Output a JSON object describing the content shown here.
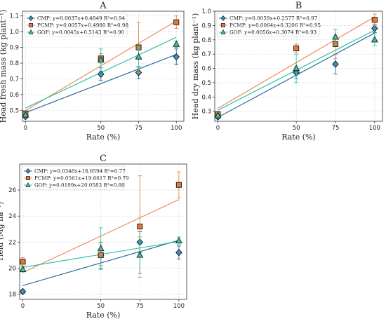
{
  "colors": {
    "CMP": "#2b6f9e",
    "PCMP": "#ee8a5e",
    "GOF": "#2ec4a6",
    "marker_CMP": "#3a8fc4",
    "marker_PCMP": "#e07a3a",
    "marker_GOF": "#3cc39a",
    "grid": "#d6d6d6",
    "error_CMP": "#2b6f9e",
    "error_PCMP": "#e08a4a",
    "error_GOF": "#2ec4a6"
  },
  "chart_data": [
    {
      "id": "A",
      "type": "scatter",
      "title": "A",
      "xlabel": "Rate (%)",
      "ylabel": "Head fresh mass (kg plant⁻¹)",
      "xlim": [
        -2,
        105
      ],
      "ylim": [
        0.43,
        1.13
      ],
      "x_ticks": [
        0,
        50,
        75,
        100
      ],
      "y_ticks": [
        0.5,
        0.6,
        0.7,
        0.8,
        0.9,
        1.0,
        1.1
      ],
      "y_tick_labels": [
        "0.5",
        "0.6",
        "0.7",
        "0.8",
        "0.9",
        "1.0",
        "1.1"
      ],
      "grid": true,
      "legend_position": "top-left",
      "series": [
        {
          "name": "CMP",
          "legend": "CMP: y=0.0037x+0.4849  R²=0.94",
          "marker": "diamond",
          "x": [
            0,
            50,
            75,
            100
          ],
          "y": [
            0.46,
            0.73,
            0.74,
            0.84
          ],
          "err": [
            0.01,
            0.04,
            0.04,
            0.05
          ],
          "fit": [
            0.0037,
            0.4849
          ]
        },
        {
          "name": "PCMP",
          "legend": "PCMP: y=0.0057x+0.4980  R²=0.98",
          "marker": "square",
          "x": [
            0,
            50,
            75,
            100
          ],
          "y": [
            0.48,
            0.83,
            0.9,
            1.06
          ],
          "err": [
            0.01,
            0.03,
            0.16,
            0.04
          ],
          "fit": [
            0.0057,
            0.498
          ]
        },
        {
          "name": "GOF",
          "legend": "GOF: y=0.0045x+0.5143  R²=0.90",
          "marker": "triangle",
          "x": [
            0,
            50,
            75,
            100
          ],
          "y": [
            0.47,
            0.82,
            0.84,
            0.92
          ],
          "err": [
            0.01,
            0.07,
            0.07,
            0.02
          ],
          "fit": [
            0.0045,
            0.5143
          ]
        }
      ]
    },
    {
      "id": "B",
      "type": "scatter",
      "title": "B",
      "xlabel": "Rate (%)",
      "ylabel": "Head dry mass (kg plant⁻¹)",
      "xlim": [
        -2,
        105
      ],
      "ylim": [
        0.23,
        1.0
      ],
      "x_ticks": [
        0,
        50,
        75,
        100
      ],
      "y_ticks": [
        0.3,
        0.4,
        0.5,
        0.6,
        0.7,
        0.8,
        0.9,
        1.0
      ],
      "y_tick_labels": [
        "0.3",
        "0.4",
        "0.5",
        "0.6",
        "0.7",
        "0.8",
        "0.9",
        "1.0"
      ],
      "grid": true,
      "legend_position": "top-left",
      "series": [
        {
          "name": "CMP",
          "legend": "CMP: y=0.0059x+0.2577  R²=0.97",
          "marker": "diamond",
          "x": [
            0,
            50,
            75,
            100
          ],
          "y": [
            0.26,
            0.57,
            0.63,
            0.88
          ],
          "err": [
            0.01,
            0.04,
            0.07,
            0.03
          ],
          "fit": [
            0.0059,
            0.2577
          ]
        },
        {
          "name": "PCMP",
          "legend": "PCMP: y=0.0064x+0.3206  R²=0.95",
          "marker": "square",
          "x": [
            0,
            50,
            75,
            100
          ],
          "y": [
            0.28,
            0.74,
            0.77,
            0.94
          ],
          "err": [
            0.01,
            0.03,
            0.1,
            0.04
          ],
          "fit": [
            0.0064,
            0.3206
          ]
        },
        {
          "name": "GOF",
          "legend": "GOF: y=0.0056x+0.3074  R²=0.93",
          "marker": "triangle",
          "x": [
            0,
            50,
            75,
            100
          ],
          "y": [
            0.27,
            0.6,
            0.82,
            0.8
          ],
          "err": [
            0.01,
            0.1,
            0.05,
            0.04
          ],
          "fit": [
            0.0056,
            0.3074
          ]
        }
      ]
    },
    {
      "id": "C",
      "type": "scatter",
      "title": "C",
      "xlabel": "Rate (%)",
      "ylabel": "Yield (Mg ha⁻¹)",
      "xlim": [
        -2,
        105
      ],
      "ylim": [
        17.6,
        28.0
      ],
      "x_ticks": [
        0,
        50,
        75,
        100
      ],
      "y_ticks": [
        18,
        20,
        22,
        24,
        26
      ],
      "y_tick_labels": [
        "18",
        "20",
        "22",
        "24",
        "26"
      ],
      "grid": true,
      "legend_position": "top-left",
      "series": [
        {
          "name": "CMP",
          "legend": "CMP: y=0.0348x+18.6594  R²=0.77",
          "marker": "diamond",
          "x": [
            0,
            50,
            75,
            100
          ],
          "y": [
            18.2,
            21.0,
            22.0,
            21.2
          ],
          "err": [
            0.15,
            1.0,
            0.8,
            0.5
          ],
          "fit": [
            0.0348,
            18.6594
          ]
        },
        {
          "name": "PCMP",
          "legend": "PCMP: y=0.0561x+19.6617  R²=0.79",
          "marker": "square",
          "x": [
            0,
            50,
            75,
            100
          ],
          "y": [
            20.5,
            21.0,
            23.2,
            26.4
          ],
          "err": [
            0.3,
            0.8,
            3.9,
            1.0
          ],
          "fit": [
            0.0561,
            19.6617
          ]
        },
        {
          "name": "GOF",
          "legend": "GOF: y=0.0199x+20.0583  R²=0.80",
          "marker": "triangle",
          "x": [
            0,
            50,
            75,
            100
          ],
          "y": [
            19.9,
            21.5,
            21.0,
            22.1
          ],
          "err": [
            0.2,
            1.6,
            1.4,
            0.3
          ],
          "fit": [
            0.0199,
            20.0583
          ]
        }
      ]
    }
  ]
}
